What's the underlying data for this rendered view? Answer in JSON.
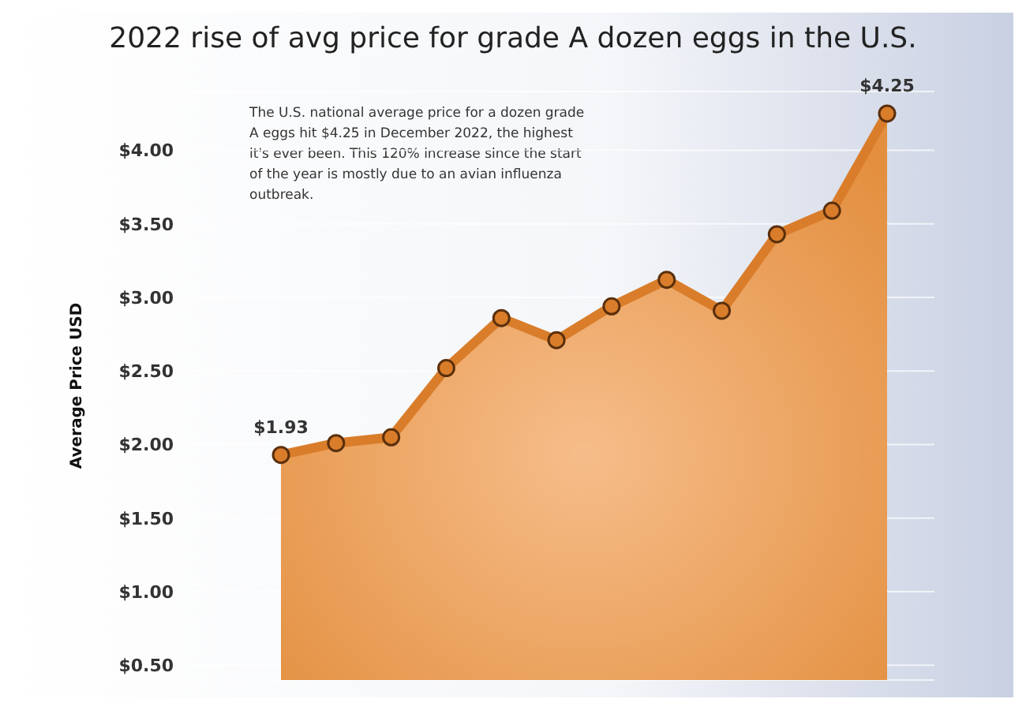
{
  "chart_data": {
    "type": "area",
    "title": "2022 rise of avg price for grade A dozen eggs in the U.S.",
    "ylabel": "Average Price USD",
    "annotations": [
      "The U.S. national average price for a dozen grade A eggs hit $4.25 in December 2022, the highest it's ever been. This 120% increase since the start of the year is mostly due to an avian influenza outbreak."
    ],
    "categories": [
      null,
      null,
      null,
      null,
      null,
      null,
      null,
      null,
      null,
      null,
      null,
      null
    ],
    "series": [
      {
        "color": "#d97d2b",
        "values": [
          1.93,
          2.01,
          2.05,
          2.52,
          2.86,
          2.71,
          2.94,
          3.12,
          2.91,
          3.43,
          3.59,
          4.25
        ],
        "value_labels": [
          "$1.93",
          null,
          null,
          null,
          null,
          null,
          null,
          null,
          null,
          null,
          null,
          "$4.25"
        ]
      }
    ],
    "ylim": [
      0.4,
      4.4
    ],
    "yticks": [
      {
        "value": 0.5,
        "label": "$0.50"
      },
      {
        "value": 1,
        "label": "$1.00"
      },
      {
        "value": 1.5,
        "label": "$1.50"
      },
      {
        "value": 2,
        "label": "$2.00"
      },
      {
        "value": 2.5,
        "label": "$2.50"
      },
      {
        "value": 3,
        "label": "$3.00"
      },
      {
        "value": 3.5,
        "label": "$3.50"
      },
      {
        "value": 4,
        "label": "$4.00"
      }
    ],
    "tick_labels": "y",
    "grid": "y",
    "legend": false,
    "marker": "circle",
    "line_style": "solid"
  }
}
